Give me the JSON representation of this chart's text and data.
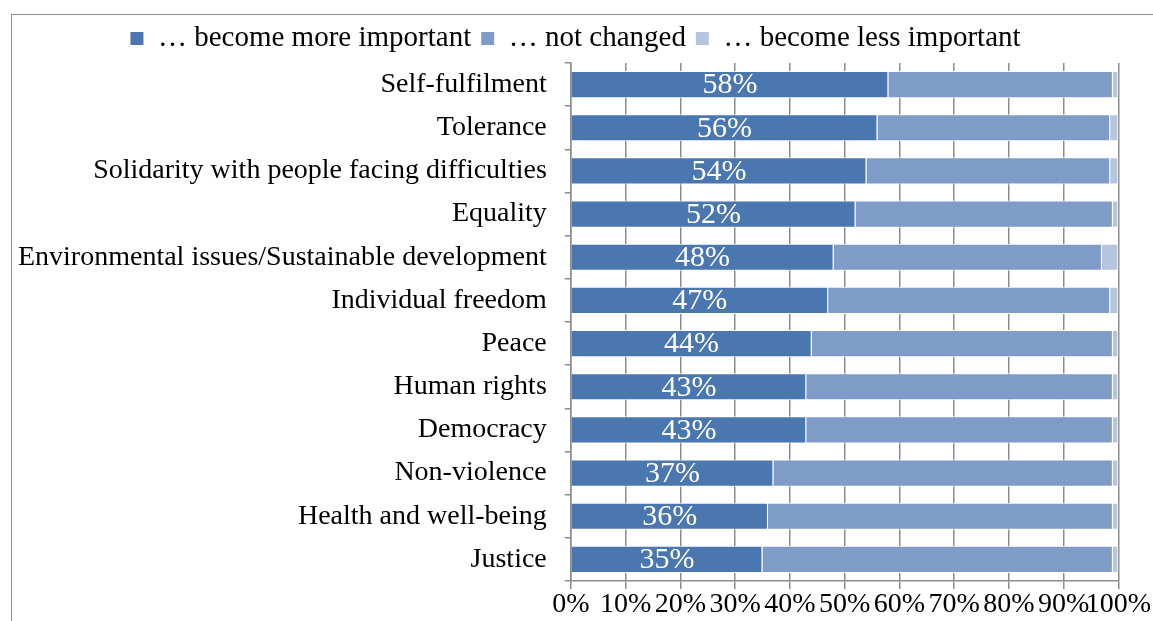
{
  "chart_data": {
    "type": "bar",
    "orientation": "horizontal",
    "stacked": true,
    "categories": [
      "Self-fulfilment",
      "Tolerance",
      "Solidarity with people facing difficulties",
      "Equality",
      "Environmental issues/Sustainable development",
      "Individual freedom",
      "Peace",
      "Human rights",
      "Democracy",
      "Non-violence",
      "Health and well-being",
      "Justice"
    ],
    "series": [
      {
        "name": "… become more important",
        "color": "#4a77b0",
        "values": [
          58,
          56,
          54,
          52,
          48,
          47,
          44,
          43,
          43,
          37,
          36,
          35
        ],
        "value_labels": [
          "58%",
          "56%",
          "54%",
          "52%",
          "48%",
          "47%",
          "44%",
          "43%",
          "43%",
          "37%",
          "36%",
          "35%"
        ]
      },
      {
        "name": "… not changed",
        "color": "#7f9cc8",
        "values": [
          41,
          42.5,
          44.5,
          47,
          49,
          51.5,
          55,
          56,
          56,
          62,
          63,
          64
        ]
      },
      {
        "name": "… become less important",
        "color": "#b5c4df",
        "values": [
          1,
          1.5,
          1.5,
          1,
          3,
          1.5,
          1,
          1,
          1,
          1,
          1,
          1
        ]
      }
    ],
    "xlim": [
      0,
      100
    ],
    "xticks": [
      {
        "value": 0,
        "label": "0%"
      },
      {
        "value": 10,
        "label": "10%"
      },
      {
        "value": 20,
        "label": "20%"
      },
      {
        "value": 30,
        "label": "30%"
      },
      {
        "value": 40,
        "label": "40%"
      },
      {
        "value": 50,
        "label": "50%"
      },
      {
        "value": 60,
        "label": "60%"
      },
      {
        "value": 70,
        "label": "70%"
      },
      {
        "value": 80,
        "label": "80%"
      },
      {
        "value": 90,
        "label": "90%"
      },
      {
        "value": 100,
        "label": "100%"
      }
    ],
    "grid": "x",
    "legend": "top"
  }
}
